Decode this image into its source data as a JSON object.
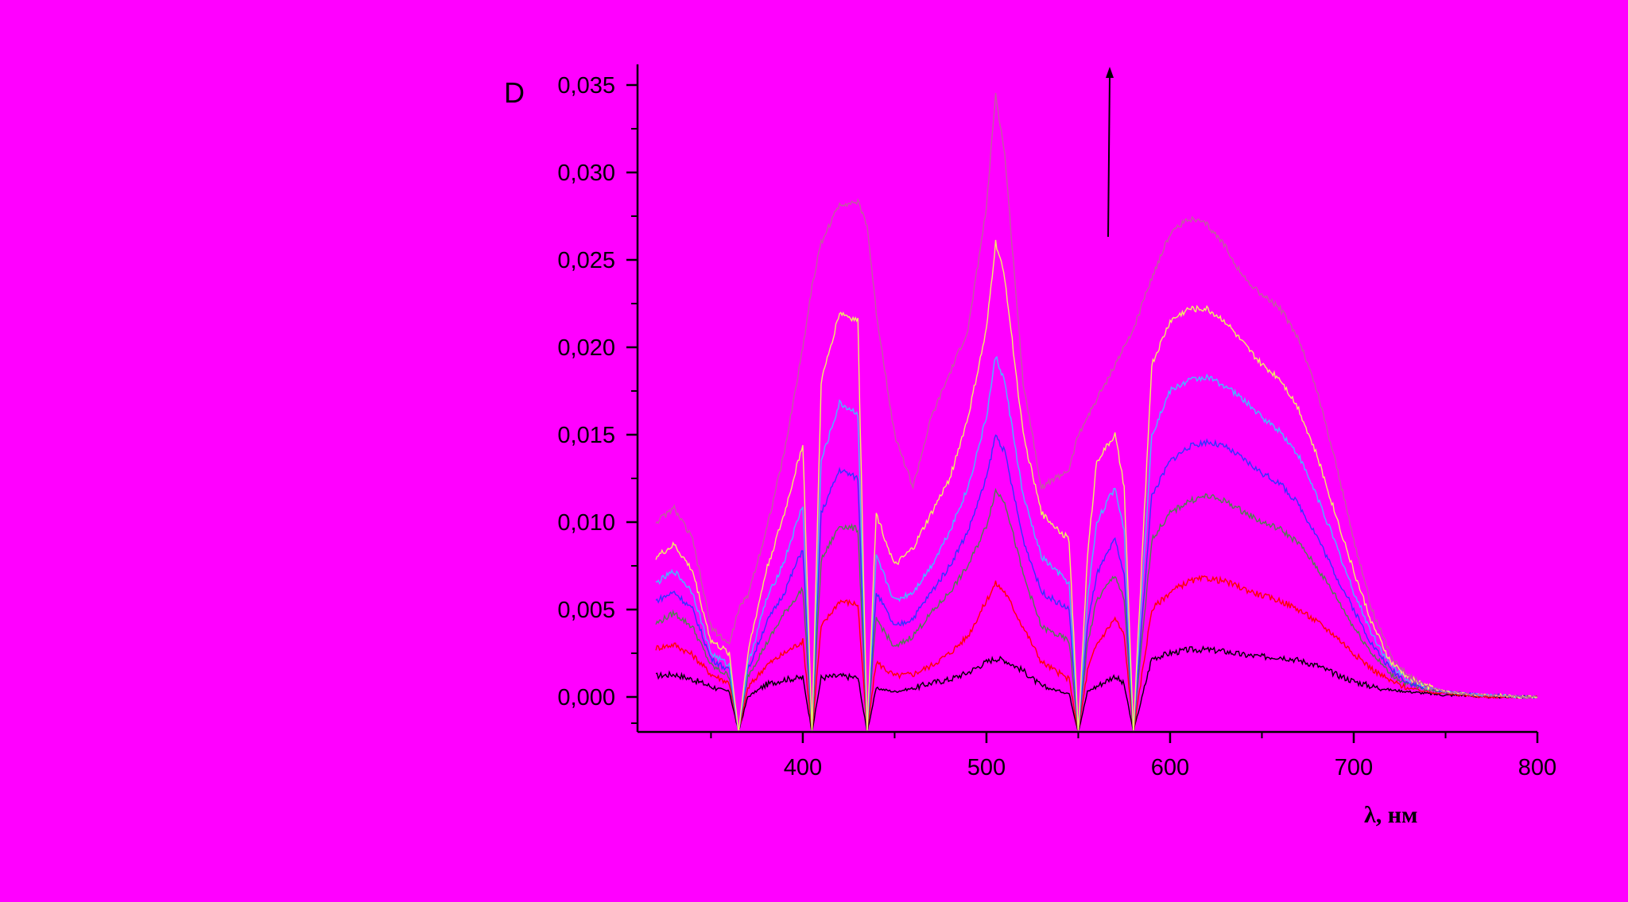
{
  "chart_data": {
    "type": "line",
    "title": "",
    "xlabel": "λ, нм",
    "ylabel": "D",
    "xlim": [
      310,
      800
    ],
    "ylim": [
      -0.002,
      0.036
    ],
    "x_ticks": [
      400,
      500,
      600,
      700,
      800
    ],
    "y_ticks": [
      "0,000",
      "0,005",
      "0,010",
      "0,015",
      "0,020",
      "0,025",
      "0,030",
      "0,035"
    ],
    "y_tick_values": [
      0.0,
      0.005,
      0.01,
      0.015,
      0.02,
      0.025,
      0.03,
      0.035
    ],
    "grid": false,
    "legend": "none",
    "annotation": "upward arrow indicating increasing absorbance",
    "x": [
      320,
      330,
      340,
      350,
      360,
      365,
      370,
      380,
      390,
      400,
      405,
      410,
      420,
      430,
      435,
      440,
      450,
      460,
      470,
      480,
      490,
      500,
      505,
      510,
      520,
      530,
      545,
      550,
      555,
      560,
      570,
      575,
      580,
      590,
      600,
      610,
      620,
      630,
      640,
      650,
      660,
      670,
      680,
      690,
      700,
      710,
      720,
      730,
      740,
      750,
      760,
      770,
      780,
      790,
      800
    ],
    "series": [
      {
        "color": "#000000",
        "values": [
          0.0012,
          0.0013,
          0.001,
          0.0006,
          0.0003,
          -0.002,
          0.0,
          0.0007,
          0.001,
          0.0011,
          -0.002,
          0.0011,
          0.0012,
          0.0011,
          -0.002,
          0.0005,
          0.0003,
          0.0005,
          0.0008,
          0.001,
          0.0014,
          0.002,
          0.0022,
          0.0021,
          0.0015,
          0.0006,
          0.0002,
          -0.002,
          0.0003,
          0.0006,
          0.0012,
          0.0007,
          -0.002,
          0.0022,
          0.0025,
          0.0027,
          0.0027,
          0.0026,
          0.0024,
          0.0023,
          0.0023,
          0.0021,
          0.0018,
          0.0013,
          0.0009,
          0.0006,
          0.0004,
          0.0003,
          0.0002,
          0.0001,
          0.0001,
          0.0,
          0.0,
          0.0,
          0.0
        ]
      },
      {
        "color": "#ff0000",
        "values": [
          0.0028,
          0.003,
          0.0024,
          0.0013,
          0.0008,
          -0.002,
          0.0005,
          0.0018,
          0.0025,
          0.0032,
          -0.002,
          0.004,
          0.0055,
          0.0053,
          -0.002,
          0.002,
          0.0012,
          0.0013,
          0.0018,
          0.0025,
          0.0035,
          0.0055,
          0.0065,
          0.006,
          0.004,
          0.002,
          0.001,
          -0.002,
          0.0015,
          0.003,
          0.0045,
          0.0035,
          -0.002,
          0.005,
          0.006,
          0.0066,
          0.0068,
          0.0066,
          0.0062,
          0.0058,
          0.0055,
          0.005,
          0.0043,
          0.0035,
          0.0025,
          0.0016,
          0.0009,
          0.0005,
          0.0003,
          0.0002,
          0.0001,
          0.0,
          0.0,
          0.0,
          0.0
        ]
      },
      {
        "color": "#4f7f4f",
        "values": [
          0.0042,
          0.0048,
          0.004,
          0.0018,
          0.0012,
          -0.002,
          0.0012,
          0.003,
          0.0048,
          0.0062,
          -0.002,
          0.0078,
          0.0098,
          0.0096,
          -0.002,
          0.0045,
          0.0028,
          0.0035,
          0.0048,
          0.006,
          0.0075,
          0.0098,
          0.0118,
          0.0112,
          0.007,
          0.004,
          0.0032,
          -0.002,
          0.003,
          0.0055,
          0.007,
          0.0055,
          -0.002,
          0.009,
          0.0105,
          0.0112,
          0.0115,
          0.0112,
          0.0106,
          0.01,
          0.0096,
          0.0088,
          0.0074,
          0.0058,
          0.004,
          0.0025,
          0.0013,
          0.0007,
          0.0004,
          0.0003,
          0.0002,
          0.0001,
          0.0001,
          0.0,
          0.0
        ]
      },
      {
        "color": "#3333ff",
        "values": [
          0.0055,
          0.006,
          0.005,
          0.0022,
          0.0015,
          -0.002,
          0.0015,
          0.0042,
          0.006,
          0.0085,
          -0.002,
          0.0105,
          0.013,
          0.0125,
          -0.002,
          0.006,
          0.004,
          0.0045,
          0.006,
          0.0075,
          0.0095,
          0.0125,
          0.015,
          0.014,
          0.009,
          0.006,
          0.005,
          -0.002,
          0.004,
          0.007,
          0.009,
          0.007,
          -0.002,
          0.0115,
          0.0135,
          0.0143,
          0.0146,
          0.0143,
          0.0136,
          0.0128,
          0.0122,
          0.011,
          0.0092,
          0.007,
          0.005,
          0.003,
          0.0016,
          0.0008,
          0.0005,
          0.0003,
          0.0002,
          0.0001,
          0.0001,
          0.0,
          0.0
        ]
      },
      {
        "color": "#44bbff",
        "values": [
          0.0065,
          0.0072,
          0.006,
          0.0025,
          0.0018,
          -0.002,
          0.0018,
          0.0055,
          0.0078,
          0.011,
          -0.002,
          0.0135,
          0.0168,
          0.0162,
          -0.002,
          0.008,
          0.0055,
          0.006,
          0.0075,
          0.0095,
          0.012,
          0.016,
          0.0195,
          0.018,
          0.0115,
          0.008,
          0.0065,
          -0.002,
          0.0055,
          0.01,
          0.012,
          0.0095,
          -0.002,
          0.015,
          0.0175,
          0.0181,
          0.0183,
          0.0178,
          0.017,
          0.016,
          0.0152,
          0.0138,
          0.0115,
          0.0088,
          0.006,
          0.0036,
          0.0018,
          0.001,
          0.0006,
          0.0003,
          0.0002,
          0.0001,
          0.0001,
          0.0,
          0.0
        ]
      },
      {
        "color": "#f0f060",
        "values": [
          0.008,
          0.0087,
          0.0072,
          0.0032,
          0.0025,
          -0.002,
          0.0025,
          0.0072,
          0.0105,
          0.0145,
          -0.002,
          0.018,
          0.022,
          0.0215,
          -0.002,
          0.0105,
          0.0075,
          0.0085,
          0.0105,
          0.0125,
          0.016,
          0.021,
          0.026,
          0.024,
          0.015,
          0.0105,
          0.009,
          -0.002,
          0.008,
          0.0135,
          0.015,
          0.012,
          -0.002,
          0.019,
          0.0215,
          0.0222,
          0.0222,
          0.0215,
          0.0202,
          0.019,
          0.0182,
          0.0165,
          0.0138,
          0.0105,
          0.0072,
          0.0042,
          0.002,
          0.0011,
          0.0006,
          0.0003,
          0.0002,
          0.0001,
          0.0001,
          0.0,
          0.0
        ]
      },
      {
        "color": "#c05ca0",
        "values": [
          0.01,
          0.0108,
          0.009,
          0.004,
          0.003,
          0.005,
          0.0058,
          0.0095,
          0.014,
          0.02,
          0.0235,
          0.026,
          0.0282,
          0.0283,
          0.027,
          0.022,
          0.015,
          0.012,
          0.016,
          0.0185,
          0.021,
          0.028,
          0.0345,
          0.031,
          0.018,
          0.012,
          0.013,
          0.015,
          0.016,
          0.017,
          0.019,
          0.02,
          0.021,
          0.024,
          0.0265,
          0.0274,
          0.027,
          0.0258,
          0.024,
          0.023,
          0.0222,
          0.0205,
          0.0175,
          0.0135,
          0.009,
          0.005,
          0.0024,
          0.0012,
          0.0006,
          0.0003,
          0.0002,
          0.0001,
          0.0001,
          0.0,
          0.0
        ]
      }
    ]
  }
}
